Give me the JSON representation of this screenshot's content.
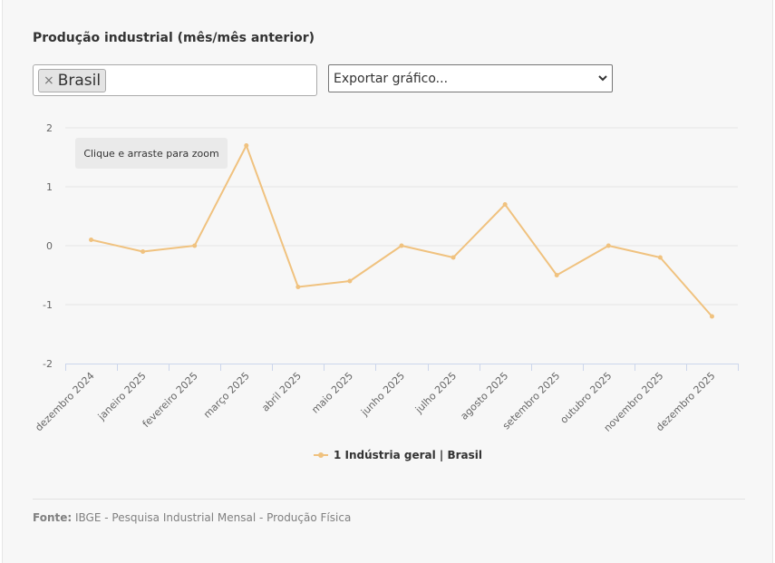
{
  "title": "Produção industrial (mês/mês anterior)",
  "filter": {
    "tag_label": "Brasil",
    "remove_symbol": "×"
  },
  "export": {
    "label": "Exportar gráfico..."
  },
  "zoom_hint": "Clique e arraste para zoom",
  "source": {
    "label": "Fonte:",
    "text": "IBGE - Pesquisa Industrial Mensal - Produção Física"
  },
  "colors": {
    "series": "#f0c27f",
    "grid": "#e6e6e6",
    "axis": "#ccd6eb"
  },
  "chart_data": {
    "type": "line",
    "categories": [
      "dezembro 2024",
      "janeiro 2025",
      "fevereiro 2025",
      "março 2025",
      "abril 2025",
      "maio 2025",
      "junho 2025",
      "julho 2025",
      "agosto 2025",
      "setembro 2025",
      "outubro 2025",
      "novembro 2025",
      "dezembro 2025"
    ],
    "series": [
      {
        "name": "1 Indústria geral | Brasil",
        "values": [
          0.1,
          -0.1,
          0.0,
          1.7,
          -0.7,
          -0.6,
          0.0,
          -0.2,
          0.7,
          -0.5,
          0.0,
          -0.2,
          -1.2
        ]
      }
    ],
    "ylim": [
      -2,
      2
    ],
    "yticks": [
      2,
      1,
      0,
      -1,
      -2
    ],
    "grid": true,
    "legend_position": "bottom-center"
  }
}
